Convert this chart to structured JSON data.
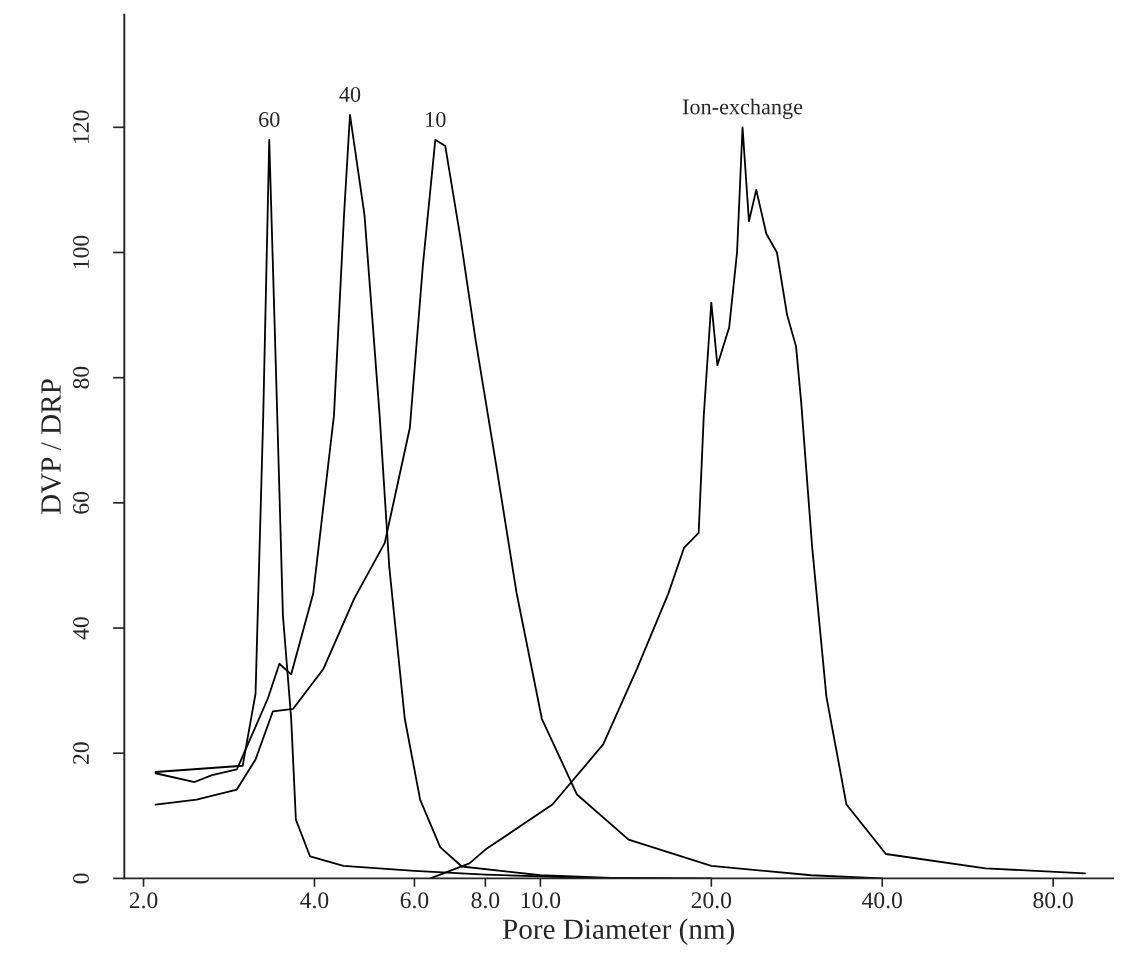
{
  "chart_data": {
    "type": "line",
    "xlabel": "Pore Diameter (nm)",
    "ylabel": "DVP / DRP",
    "log": "x",
    "xlim": [
      1.85,
      102
    ],
    "ylim": [
      0,
      138
    ],
    "xticks": [
      {
        "value": 2,
        "label": "2.0"
      },
      {
        "value": 4,
        "label": "4.0"
      },
      {
        "value": 6,
        "label": "6.0"
      },
      {
        "value": 8,
        "label": "8.0"
      },
      {
        "value": 10,
        "label": "10.0"
      },
      {
        "value": 20,
        "label": "20.0"
      },
      {
        "value": 40,
        "label": "40.0"
      },
      {
        "value": 80,
        "label": "80.0"
      }
    ],
    "yticks": [
      0,
      20,
      40,
      60,
      80,
      100,
      120
    ],
    "grid": false,
    "legend": false,
    "marker": "none",
    "line_style": "solid",
    "series": [
      {
        "name": "60",
        "color": "#000000",
        "x": [
          2.1,
          2.99,
          3.15,
          3.25,
          3.33,
          3.42,
          3.52,
          3.64,
          3.71,
          3.93,
          4.5,
          6,
          8,
          12,
          20
        ],
        "values": [
          17,
          18,
          29.5,
          74,
          118,
          82,
          42,
          25.5,
          9.4,
          3.5,
          2,
          1.2,
          0.6,
          0.1,
          0
        ]
      },
      {
        "name": "40",
        "color": "#000000",
        "x": [
          2.1,
          2.46,
          2.64,
          2.92,
          3.31,
          3.47,
          3.64,
          3.98,
          4.33,
          4.51,
          4.62,
          4.9,
          5.21,
          5.42,
          5.77,
          6.14,
          6.66,
          7.27,
          10,
          14
        ],
        "values": [
          16.8,
          15.4,
          16.5,
          17.4,
          28.7,
          34.3,
          32.6,
          45.5,
          74,
          106,
          122,
          106,
          74,
          49.6,
          25.5,
          12.6,
          5,
          1.9,
          0.5,
          0
        ]
      },
      {
        "name": "10",
        "color": "#000000",
        "x": [
          2.1,
          2.48,
          2.92,
          3.15,
          3.38,
          3.67,
          4.15,
          4.7,
          5.32,
          5.89,
          6.21,
          6.53,
          6.8,
          7.24,
          7.69,
          8.36,
          9.08,
          10.06,
          11.6,
          14.3,
          20,
          30,
          40
        ],
        "values": [
          11.8,
          12.6,
          14.2,
          19,
          26.7,
          27.1,
          33.5,
          44.7,
          53.6,
          72,
          98,
          118,
          117,
          102,
          86,
          66,
          45.6,
          25.5,
          13.4,
          6.2,
          2,
          0.5,
          0
        ]
      },
      {
        "name": "Ion-exchange",
        "color": "#000000",
        "x": [
          6.4,
          7.5,
          8,
          10.5,
          12.9,
          14.8,
          16.8,
          17.9,
          19,
          19.4,
          20,
          20.5,
          21.5,
          22.2,
          22.7,
          23.3,
          24,
          25,
          26.1,
          27.2,
          28.2,
          28.8,
          30.1,
          31.9,
          34.6,
          40.6,
          60.8,
          91
        ],
        "values": [
          0,
          2.4,
          4.6,
          11.8,
          21.4,
          33.5,
          45.5,
          52.8,
          55.2,
          74,
          92,
          82,
          88,
          100,
          120,
          105,
          110,
          103,
          100,
          90,
          85,
          76,
          53,
          29,
          11.8,
          3.9,
          1.6,
          0.8
        ]
      }
    ]
  }
}
